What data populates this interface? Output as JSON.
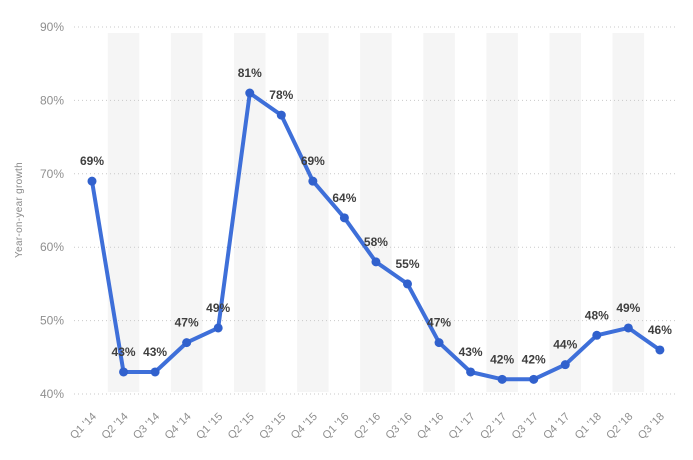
{
  "chart_data": {
    "type": "line",
    "ylabel": "Year-on-year growth",
    "xlabel": "",
    "categories": [
      "Q1 '14",
      "Q2 '14",
      "Q3 '14",
      "Q4 '14",
      "Q1 '15",
      "Q2 '15",
      "Q3 '15",
      "Q4 '15",
      "Q1 '16",
      "Q2 '16",
      "Q3 '16",
      "Q4 '16",
      "Q1 '17",
      "Q2 '17",
      "Q3 '17",
      "Q4 '17",
      "Q1 '18",
      "Q2 '18",
      "Q3 '18"
    ],
    "values": [
      69,
      43,
      43,
      47,
      49,
      81,
      78,
      69,
      64,
      58,
      55,
      47,
      43,
      42,
      42,
      44,
      48,
      49,
      46
    ],
    "data_labels": [
      "69%",
      "43%",
      "43%",
      "47%",
      "49%",
      "81%",
      "78%",
      "69%",
      "64%",
      "58%",
      "55%",
      "47%",
      "43%",
      "42%",
      "42%",
      "44%",
      "48%",
      "49%",
      "46%"
    ],
    "unit": "%",
    "ylim": [
      40,
      90
    ],
    "yticks": [
      40,
      50,
      60,
      70,
      80,
      90
    ],
    "ytick_labels": [
      "40%",
      "50%",
      "60%",
      "70%",
      "80%",
      "90%"
    ],
    "grid": "horizontal-dotted",
    "legend": "none",
    "band_pattern": "alternating-columns-on-odd-indices",
    "colors": {
      "line": "#3e6fd9",
      "marker": "#3161cd",
      "value_label": "#3f3f3f",
      "tick_label": "#8f8f8f",
      "axis_title": "#8a8a8a",
      "gridline": "#c9c9c9",
      "band": "#f5f5f5",
      "background": "#ffffff"
    }
  }
}
